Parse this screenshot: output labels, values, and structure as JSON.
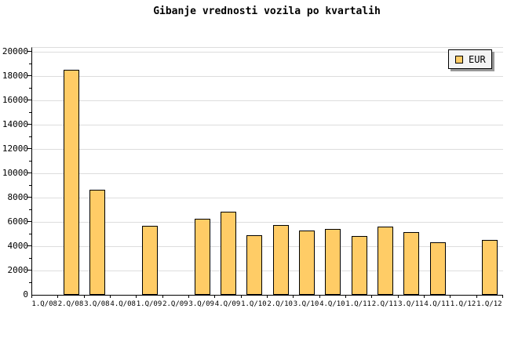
{
  "chart_data": {
    "type": "bar",
    "title": "Gibanje vrednosti vozila po kvartalih",
    "legend": [
      "EUR"
    ],
    "legend_position": "top-right",
    "categories": [
      "1.Q/08",
      "2.Q/08",
      "3.Q/08",
      "4.Q/08",
      "1.Q/09",
      "2.Q/09",
      "3.Q/09",
      "4.Q/09",
      "1.Q/10",
      "2.Q/10",
      "3.Q/10",
      "4.Q/10",
      "1.Q/11",
      "2.Q/11",
      "3.Q/11",
      "4.Q/11",
      "1.Q/12",
      "1.Q/12"
    ],
    "values": [
      null,
      18500,
      8650,
      null,
      5650,
      null,
      6250,
      6850,
      4900,
      5750,
      5300,
      5450,
      4850,
      5600,
      5150,
      4300,
      null,
      4500
    ],
    "ylim": [
      0,
      20000
    ],
    "y_major_step": 2000,
    "y_minor_step": 1000,
    "y_tick_labels": [
      "0",
      "2000",
      "4000",
      "6000",
      "8000",
      "10000",
      "12000",
      "14000",
      "16000",
      "18000",
      "20000"
    ],
    "grid": "horizontal-only",
    "xlabel": "",
    "ylabel": ""
  },
  "colors": {
    "background": "#ffffff",
    "bar_fill": "#ffcc66",
    "bar_border": "#000000",
    "gridline": "#dddddd",
    "axis": "#000000",
    "legend_bg": "#f4f4f4",
    "legend_shadow": "#999999",
    "text": "#000000"
  }
}
